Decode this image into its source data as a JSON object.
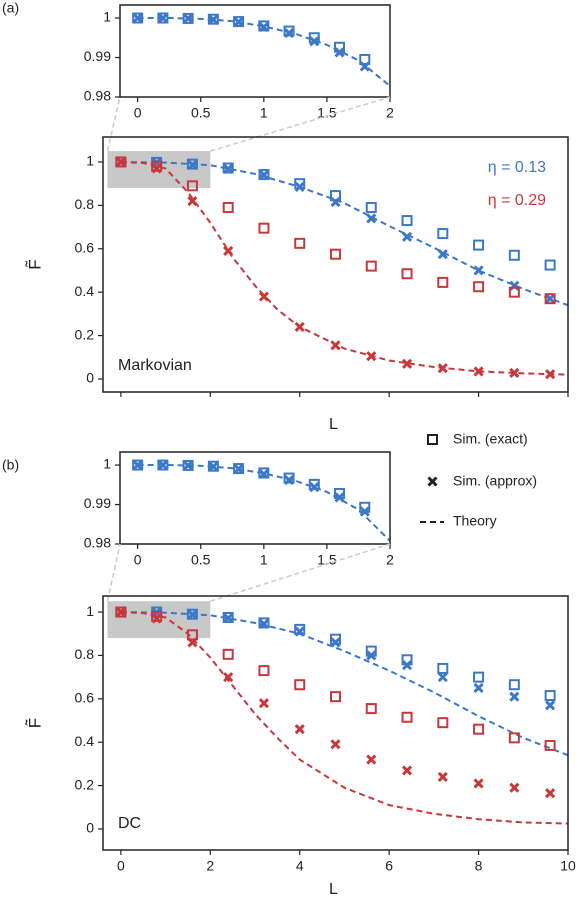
{
  "panel_labels": [
    "(a)",
    "(b)"
  ],
  "legend": {
    "labels": [
      "Sim. (exact)",
      "Sim. (approx)",
      "Theory"
    ]
  },
  "chart_data": [
    {
      "type": "scatter",
      "xlim": [
        -0.14,
        2
      ],
      "ylim": [
        0.98,
        1.0033
      ],
      "xticks": [
        0,
        0.5,
        1,
        1.5,
        2
      ],
      "yticks": [
        0.98,
        0.99,
        1
      ],
      "series": [
        {
          "color": "#3b78c8",
          "x": [
            0,
            0.2,
            0.4,
            0.6,
            0.8,
            1,
            1.2,
            1.4,
            1.6,
            1.8
          ],
          "exact": [
            1,
            1,
            0.9999,
            0.9997,
            0.9991,
            0.998,
            0.9967,
            0.995,
            0.9926,
            0.9895
          ],
          "approx": [
            1,
            1,
            0.9999,
            0.9996,
            0.999,
            0.9977,
            0.9962,
            0.9941,
            0.9913,
            0.9877
          ],
          "theory_x": [
            0,
            0.25,
            0.5,
            0.75,
            1,
            1.25,
            1.5,
            1.75,
            2
          ],
          "theory": [
            1,
            1,
            0.9998,
            0.9992,
            0.9979,
            0.996,
            0.9932,
            0.9893,
            0.9828
          ]
        }
      ]
    },
    {
      "type": "scatter",
      "xlabel": "L",
      "ylabel": "F̃",
      "annotation": "Markovian",
      "xticklabels": false,
      "xlim": [
        -0.4,
        10
      ],
      "ylim": [
        -0.06,
        1.115
      ],
      "xticks": [
        0,
        2,
        4,
        6,
        8,
        10
      ],
      "yticks": [
        0,
        0.2,
        0.4,
        0.6,
        0.8,
        1
      ],
      "zoom_box": {
        "xlim": [
          -0.3,
          2
        ],
        "ylim": [
          0.88,
          1.05
        ]
      },
      "series": [
        {
          "name": "η = 0.13",
          "color": "#3b78c8",
          "x": [
            0,
            0.8,
            1.6,
            2.4,
            3.2,
            4,
            4.8,
            5.6,
            6.4,
            7.2,
            8,
            8.8,
            9.6
          ],
          "exact": [
            1,
            0.998,
            0.99,
            0.972,
            0.942,
            0.9,
            0.845,
            0.79,
            0.73,
            0.67,
            0.617,
            0.57,
            0.525
          ],
          "approx": [
            1,
            0.997,
            0.986,
            0.968,
            0.94,
            0.885,
            0.815,
            0.74,
            0.655,
            0.575,
            0.5,
            0.43,
            0.37
          ],
          "theory_x": [
            0,
            1,
            2,
            3,
            4,
            5,
            6,
            7,
            8,
            9,
            10
          ],
          "theory": [
            1,
            0.997,
            0.985,
            0.945,
            0.885,
            0.81,
            0.705,
            0.605,
            0.5,
            0.415,
            0.34
          ]
        },
        {
          "name": "η = 0.29",
          "color": "#c8383a",
          "x": [
            0,
            0.8,
            1.6,
            2.4,
            3.2,
            4,
            4.8,
            5.6,
            6.4,
            7.2,
            8,
            8.8,
            9.6
          ],
          "exact": [
            1,
            0.98,
            0.89,
            0.79,
            0.695,
            0.625,
            0.575,
            0.52,
            0.485,
            0.445,
            0.425,
            0.4,
            0.37
          ],
          "approx": [
            1,
            0.97,
            0.82,
            0.59,
            0.38,
            0.24,
            0.155,
            0.105,
            0.07,
            0.05,
            0.035,
            0.028,
            0.022
          ],
          "theory_x": [
            0,
            0.5,
            1,
            1.5,
            2,
            2.5,
            3,
            3.5,
            4,
            5,
            6,
            7,
            8,
            9,
            10
          ],
          "theory": [
            1,
            0.995,
            0.97,
            0.86,
            0.72,
            0.56,
            0.43,
            0.32,
            0.24,
            0.14,
            0.085,
            0.055,
            0.035,
            0.026,
            0.02
          ]
        }
      ]
    },
    {
      "type": "scatter",
      "xlim": [
        -0.14,
        2
      ],
      "ylim": [
        0.98,
        1.0033
      ],
      "xticks": [
        0,
        0.5,
        1,
        1.5,
        2
      ],
      "yticks": [
        0.98,
        0.99,
        1
      ],
      "series": [
        {
          "color": "#3b78c8",
          "x": [
            0,
            0.2,
            0.4,
            0.6,
            0.8,
            1,
            1.2,
            1.4,
            1.6,
            1.8
          ],
          "exact": [
            1,
            1,
            0.9999,
            0.9997,
            0.9991,
            0.998,
            0.9967,
            0.9951,
            0.9928,
            0.9893
          ],
          "approx": [
            1,
            1,
            0.9999,
            0.9996,
            0.999,
            0.9977,
            0.9962,
            0.9944,
            0.9918,
            0.9882
          ],
          "theory_x": [
            0,
            0.25,
            0.5,
            0.75,
            1,
            1.25,
            1.5,
            1.75,
            2
          ],
          "theory": [
            1,
            1,
            0.9998,
            0.9992,
            0.9979,
            0.996,
            0.9932,
            0.9887,
            0.9808
          ]
        }
      ]
    },
    {
      "type": "scatter",
      "xlabel": "L",
      "ylabel": "F̃",
      "annotation": "DC",
      "xlim": [
        -0.4,
        10
      ],
      "ylim": [
        -0.097,
        1.074
      ],
      "xticks": [
        0,
        2,
        4,
        6,
        8,
        10
      ],
      "yticks": [
        0,
        0.2,
        0.4,
        0.6,
        0.8,
        1
      ],
      "zoom_box": {
        "xlim": [
          -0.3,
          2
        ],
        "ylim": [
          0.88,
          1.05
        ]
      },
      "series": [
        {
          "color": "#3b78c8",
          "x": [
            0,
            0.8,
            1.6,
            2.4,
            3.2,
            4,
            4.8,
            5.6,
            6.4,
            7.2,
            8,
            8.8,
            9.6
          ],
          "exact": [
            1,
            1,
            0.99,
            0.975,
            0.95,
            0.92,
            0.875,
            0.82,
            0.78,
            0.74,
            0.7,
            0.665,
            0.615
          ],
          "approx": [
            1,
            0.998,
            0.988,
            0.972,
            0.945,
            0.91,
            0.86,
            0.8,
            0.755,
            0.7,
            0.65,
            0.61,
            0.57
          ],
          "theory_x": [
            0,
            1,
            2,
            3,
            4,
            5,
            6,
            7,
            8,
            9,
            10
          ],
          "theory": [
            1,
            0.997,
            0.985,
            0.95,
            0.9,
            0.82,
            0.73,
            0.63,
            0.52,
            0.42,
            0.34
          ]
        },
        {
          "color": "#c8383a",
          "x": [
            0,
            0.8,
            1.6,
            2.4,
            3.2,
            4,
            4.8,
            5.6,
            6.4,
            7.2,
            8,
            8.8,
            9.6
          ],
          "exact": [
            1,
            0.98,
            0.895,
            0.805,
            0.73,
            0.665,
            0.61,
            0.555,
            0.515,
            0.49,
            0.46,
            0.42,
            0.385
          ],
          "approx": [
            1,
            0.97,
            0.86,
            0.7,
            0.58,
            0.46,
            0.39,
            0.32,
            0.27,
            0.24,
            0.21,
            0.19,
            0.165
          ],
          "theory_x": [
            0,
            0.5,
            1,
            1.5,
            2,
            2.5,
            3,
            3.5,
            4,
            5,
            6,
            7,
            8,
            9,
            10
          ],
          "theory": [
            1,
            0.995,
            0.975,
            0.9,
            0.79,
            0.66,
            0.53,
            0.42,
            0.32,
            0.19,
            0.11,
            0.07,
            0.045,
            0.03,
            0.025
          ]
        }
      ]
    }
  ]
}
